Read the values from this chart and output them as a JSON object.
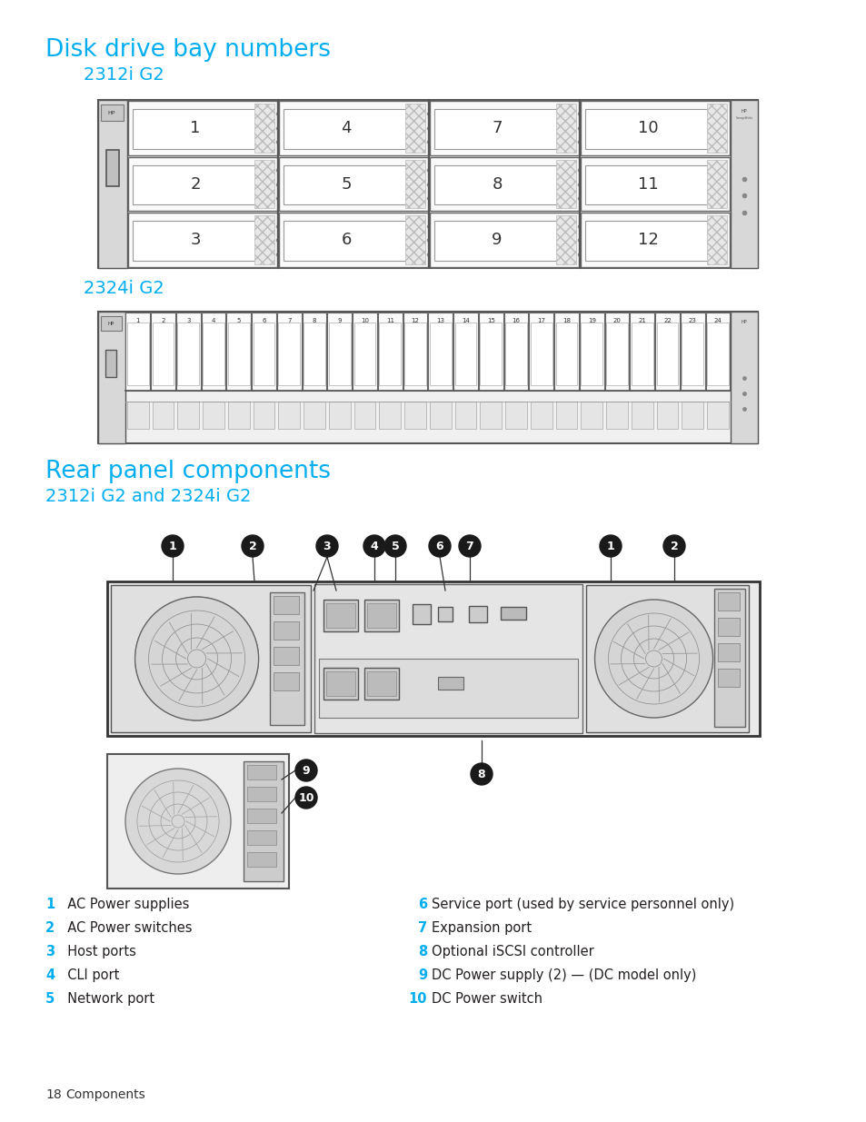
{
  "title1": "Disk drive bay numbers",
  "subtitle1": "2312i G2",
  "subtitle2": "2324i G2",
  "title2": "Rear panel components",
  "subtitle3": "2312i G2 and 2324i G2",
  "legend_left": [
    {
      "num": "1",
      "text": "  AC Power supplies"
    },
    {
      "num": "2",
      "text": "  AC Power switches"
    },
    {
      "num": "3",
      "text": "  Host ports"
    },
    {
      "num": "4",
      "text": "  CLI port"
    },
    {
      "num": "5",
      "text": "  Network port"
    }
  ],
  "legend_right": [
    {
      "num": "6",
      "text": "   Service port (used by service personnel only)"
    },
    {
      "num": "7",
      "text": "   Expansion port"
    },
    {
      "num": "8",
      "text": "   Optional iSCSI controller"
    },
    {
      "num": "9",
      "text": "   DC Power supply (2) — (DC model only)"
    },
    {
      "num": "10",
      "text": "  DC Power switch"
    }
  ],
  "cyan_color": "#00AEEF",
  "dark_color": "#231F20",
  "bg_color": "#FFFFFF",
  "footer_num": "18",
  "footer_text": "Components"
}
